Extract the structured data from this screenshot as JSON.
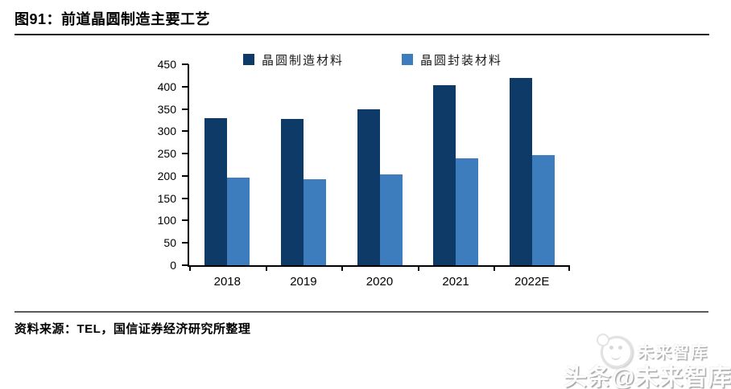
{
  "header": {
    "title": "图91：前道晶圆制造主要工艺"
  },
  "chart_data": {
    "type": "bar",
    "categories": [
      "2018",
      "2019",
      "2020",
      "2021",
      "2022E"
    ],
    "series": [
      {
        "name": "晶圆制造材料",
        "color": "#0e3a67",
        "values": [
          330,
          328,
          349,
          404,
          420
        ]
      },
      {
        "name": "晶圆封装材料",
        "color": "#3d7dbe",
        "values": [
          197,
          192,
          204,
          239,
          247
        ]
      }
    ],
    "title": "",
    "xlabel": "",
    "ylabel": "",
    "ylim": [
      0,
      450
    ],
    "yticks": [
      0,
      50,
      100,
      150,
      200,
      250,
      300,
      350,
      400,
      450
    ],
    "grid": false,
    "legend_position": "top"
  },
  "footer": {
    "source": "资料来源：TEL，国信证券经济研究所整理"
  },
  "watermark": {
    "small_text": "未来智库",
    "large_text": "头条@未来智库"
  },
  "colors": {
    "series1": "#0e3a67",
    "series2": "#3d7dbe",
    "axis": "#000000",
    "header_rule": "#1a1a1a",
    "source_rule": "#5a5a5a"
  }
}
